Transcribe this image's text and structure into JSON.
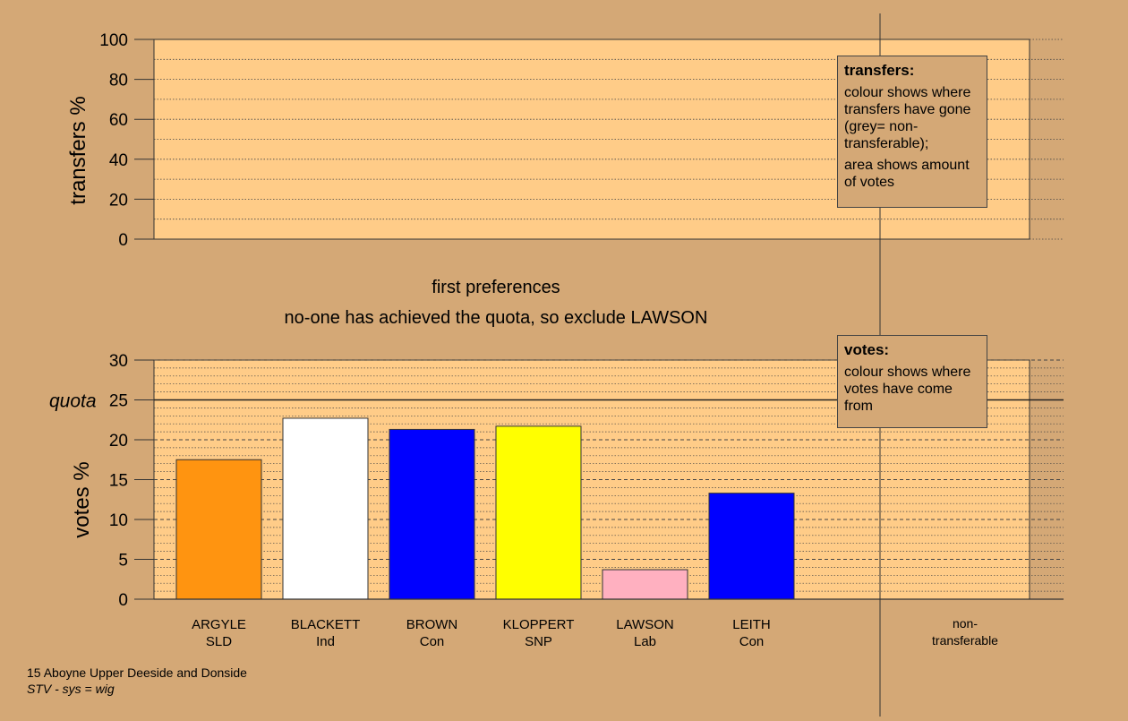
{
  "transfers_panel": {
    "ylabel": "transfers %",
    "yticks": [
      "0",
      "20",
      "40",
      "60",
      "80",
      "100"
    ],
    "legend": {
      "title": "transfers:",
      "line1": "colour shows where transfers have gone (grey= non-transferable);",
      "line2": "area shows amount of votes"
    }
  },
  "captions": {
    "stage": "first preferences",
    "action": "no-one has achieved the quota, so exclude LAWSON"
  },
  "votes_panel": {
    "ylabel": "votes %",
    "quota_label": "quota",
    "yticks": [
      "0",
      "5",
      "10",
      "15",
      "20",
      "25",
      "30"
    ],
    "legend": {
      "title": "votes:",
      "line1": "colour shows where votes have come from"
    }
  },
  "non_transferable_label": "non-\ntransferable",
  "footer": {
    "line1": "15 Aboyne Upper Deeside and Donside",
    "line2": "STV - sys = wig"
  },
  "chart_data": {
    "type": "bar",
    "categories": [
      "ARGYLE\nSLD",
      "BLACKETT\nInd",
      "BROWN\nCon",
      "KLOPPERT\nSNP",
      "LAWSON\nLab",
      "LEITH\nCon"
    ],
    "values": [
      17.5,
      22.7,
      21.3,
      21.7,
      3.7,
      13.3
    ],
    "colors": [
      "#ff9410",
      "#ffffff",
      "#0000ff",
      "#ffff00",
      "#ffb0c0",
      "#0000ff"
    ],
    "quota": 25,
    "ylim": [
      0,
      30
    ],
    "transfers_ylim": [
      0,
      100
    ]
  }
}
